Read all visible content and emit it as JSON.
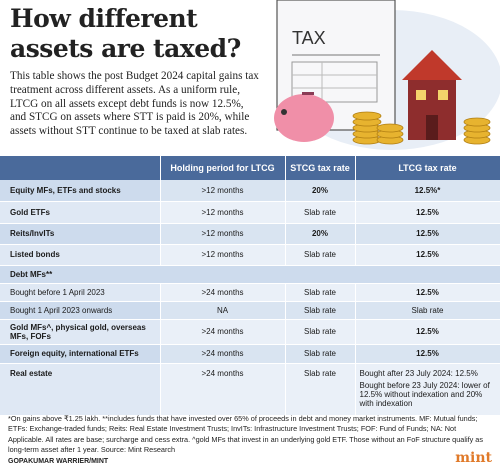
{
  "header": {
    "title": "How different assets are taxed?",
    "intro": "This table shows the post Budget 2024 capital gains tax treatment across different assets. As a uniform rule, LTCG on all assets except debt funds is now 12.5%, and STCG on assets where STT is paid is 20%, while assets without STT continue to be taxed at slab rates.",
    "illustration_label": "TAX"
  },
  "table": {
    "columns": [
      "",
      "Holding period for LTCG",
      "STCG tax rate",
      "LTCG tax rate"
    ],
    "rows": [
      [
        "Equity MFs, ETFs and stocks",
        ">12 months",
        "20%",
        "12.5%*"
      ],
      [
        "Gold ETFs",
        ">12 months",
        "Slab rate",
        "12.5%"
      ],
      [
        "Reits/InvITs",
        ">12 months",
        "20%",
        "12.5%"
      ],
      [
        "Listed bonds",
        ">12 months",
        "Slab rate",
        "12.5%"
      ],
      [
        "Debt MFs**"
      ],
      [
        "Bought before 1 April 2023",
        ">24 months",
        "Slab rate",
        "12.5%"
      ],
      [
        "Bought 1 April 2023 onwards",
        "NA",
        "Slab rate",
        "Slab rate"
      ],
      [
        "Gold MFs^, physical gold, overseas MFs, FOFs",
        ">24 months",
        "Slab rate",
        "12.5%"
      ],
      [
        "Foreign equity, international ETFs",
        ">24 months",
        "Slab rate",
        "12.5%"
      ],
      [
        "Real estate",
        ">24 months",
        "Slab rate",
        [
          "Bought after 23 July 2024: 12.5%",
          "Bought before 23 July 2024: lower of 12.5% without indexation and 20% with indexation"
        ]
      ]
    ]
  },
  "footer": {
    "notes": "*On gains above ₹1.25 lakh. **includes funds that have invested over 65% of proceeds in debt and money market instruments. MF: Mutual funds; ETFs: Exchange-traded funds; Reits: Real Estate Investment Trusts; InvITs: Infrastructure Investment Trusts; FOF: Fund of Funds; NA: Not Applicable. All rates are base; surcharge and cess extra. ^gold MFs that invest in an underlying gold ETF. Those without an FoF structure qualify as long-term asset after 1 year. Source: Mint Research",
    "credit": "GOPAKUMAR WARRIER/MINT",
    "logo": "mint"
  }
}
